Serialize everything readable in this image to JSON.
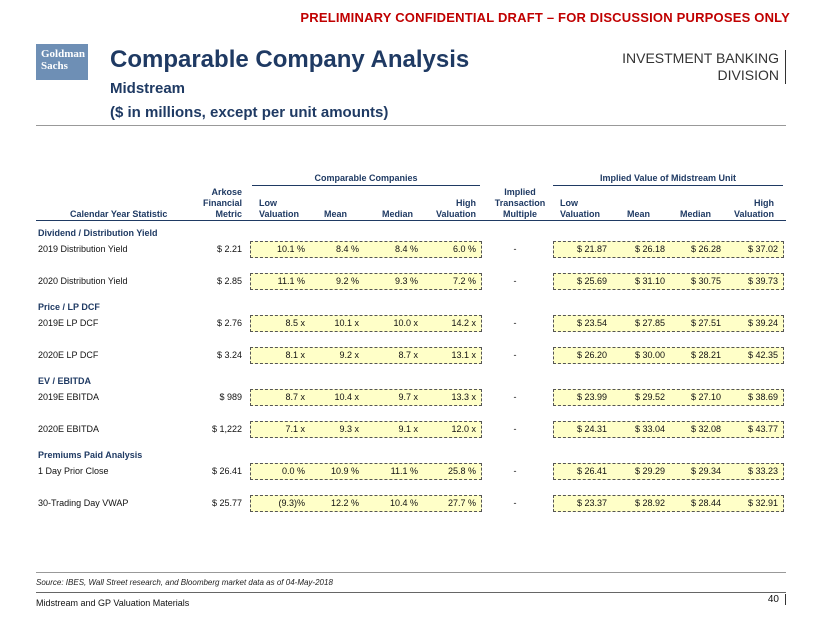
{
  "header": {
    "draft_notice": "PRELIMINARY CONFIDENTIAL DRAFT – FOR DISCUSSION PURPOSES ONLY",
    "logo_line1": "Goldman",
    "logo_line2": "Sachs",
    "title": "Comparable Company Analysis",
    "subtitle": "Midstream",
    "units": "($ in millions, except per unit amounts)",
    "division_line1": "INVESTMENT BANKING",
    "division_line2": "DIVISION"
  },
  "table": {
    "group_comparable": "Comparable Companies",
    "group_implied": "Implied Value of Midstream Unit",
    "col_stat": "Calendar Year Statistic",
    "col_metric_1": "Arkose",
    "col_metric_2": "Financial",
    "col_metric_3": "Metric",
    "col_low_1": "Low",
    "col_low_2": "Valuation",
    "col_mean": "Mean",
    "col_median": "Median",
    "col_high_1": "High",
    "col_high_2": "Valuation",
    "col_implied_1": "Implied",
    "col_implied_2": "Transaction",
    "col_implied_3": "Multiple",
    "col_ilow_1": "Low",
    "col_ilow_2": "Valuation",
    "col_imean": "Mean",
    "col_imedian": "Median",
    "col_ihigh_1": "High",
    "col_ihigh_2": "Valuation",
    "sections": [
      "Dividend / Distribution Yield",
      "Price / LP DCF",
      "EV / EBITDA",
      "Premiums Paid Analysis"
    ],
    "rows": [
      {
        "label": "2019 Distribution Yield",
        "metric": "$ 2.21",
        "low": "10.1 %",
        "mean": "8.4 %",
        "median": "8.4 %",
        "high": "6.0 %",
        "implied": "-",
        "ilow": "$ 21.87",
        "imean": "$ 26.18",
        "imedian": "$ 26.28",
        "ihigh": "$ 37.02"
      },
      {
        "label": "2020 Distribution Yield",
        "metric": "$ 2.85",
        "low": "11.1 %",
        "mean": "9.2 %",
        "median": "9.3 %",
        "high": "7.2 %",
        "implied": "-",
        "ilow": "$ 25.69",
        "imean": "$ 31.10",
        "imedian": "$ 30.75",
        "ihigh": "$ 39.73"
      },
      {
        "label": "2019E LP DCF",
        "metric": "$ 2.76",
        "low": "8.5 x",
        "mean": "10.1 x",
        "median": "10.0 x",
        "high": "14.2 x",
        "implied": "-",
        "ilow": "$ 23.54",
        "imean": "$ 27.85",
        "imedian": "$ 27.51",
        "ihigh": "$ 39.24"
      },
      {
        "label": "2020E LP DCF",
        "metric": "$ 3.24",
        "low": "8.1 x",
        "mean": "9.2 x",
        "median": "8.7 x",
        "high": "13.1 x",
        "implied": "-",
        "ilow": "$ 26.20",
        "imean": "$ 30.00",
        "imedian": "$ 28.21",
        "ihigh": "$ 42.35"
      },
      {
        "label": "2019E EBITDA",
        "metric": "$ 989",
        "low": "8.7 x",
        "mean": "10.4 x",
        "median": "9.7 x",
        "high": "13.3 x",
        "implied": "-",
        "ilow": "$ 23.99",
        "imean": "$ 29.52",
        "imedian": "$ 27.10",
        "ihigh": "$ 38.69"
      },
      {
        "label": "2020E EBITDA",
        "metric": "$ 1,222",
        "low": "7.1 x",
        "mean": "9.3 x",
        "median": "9.1 x",
        "high": "12.0 x",
        "implied": "-",
        "ilow": "$ 24.31",
        "imean": "$ 33.04",
        "imedian": "$ 32.08",
        "ihigh": "$ 43.77"
      },
      {
        "label": "1 Day Prior Close",
        "metric": "$ 26.41",
        "low": "0.0 %",
        "mean": "10.9 %",
        "median": "11.1 %",
        "high": "25.8 %",
        "implied": "-",
        "ilow": "$ 26.41",
        "imean": "$ 29.29",
        "imedian": "$ 29.34",
        "ihigh": "$ 33.23"
      },
      {
        "label": "30-Trading Day VWAP",
        "metric": "$ 25.77",
        "low": "(9.3)%",
        "mean": "12.2 %",
        "median": "10.4 %",
        "high": "27.7 %",
        "implied": "-",
        "ilow": "$ 23.37",
        "imean": "$ 28.92",
        "imedian": "$ 28.44",
        "ihigh": "$ 32.91"
      }
    ]
  },
  "footer": {
    "source": "Source: IBES, Wall Street research, and Bloomberg market data as of 04-May-2018",
    "doc_name": "Midstream and GP Valuation Materials",
    "page_number": "40"
  }
}
